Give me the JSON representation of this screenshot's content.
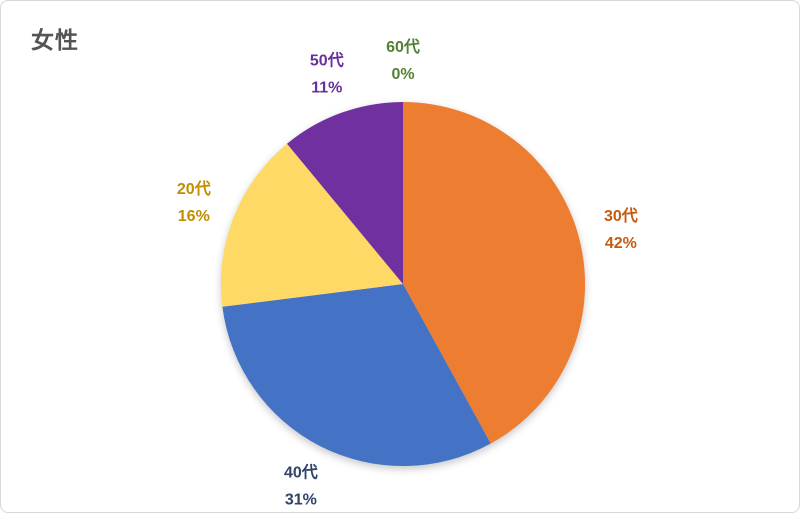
{
  "title": "女性",
  "canvas": {
    "background": "#FFFFFF",
    "border_color": "#D9D9D9",
    "title_color": "#545454"
  },
  "chart_data": {
    "type": "pie",
    "title": "女性",
    "categories": [
      "30代",
      "40代",
      "20代",
      "50代",
      "60代"
    ],
    "values": [
      42,
      31,
      16,
      11,
      0
    ],
    "unit": "%",
    "slice_colors": [
      "#ED7D31",
      "#4472C4",
      "#FFD966",
      "#7030A0",
      "#70AD47"
    ],
    "label_colors": [
      "#C55A11",
      "#2F4468",
      "#BF8F00",
      "#67309E",
      "#538135"
    ],
    "data_labels": [
      "30代 42%",
      "40代 31%",
      "20代 16%",
      "50代 11%",
      "60代 0%"
    ],
    "start_angle_deg": 0,
    "direction": "clockwise",
    "legend": "none",
    "label_position": "outside"
  }
}
